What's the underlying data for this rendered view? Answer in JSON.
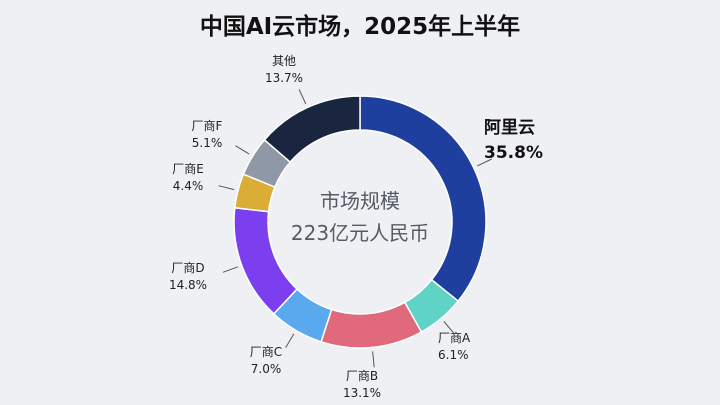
{
  "chart_data": {
    "type": "pie",
    "title": "中国AI云市场，2025年上半年",
    "center_lines": [
      "市场规模",
      "223亿元人民币"
    ],
    "slices": [
      {
        "name": "阿里云",
        "pct_label": "35.8%",
        "value": 35.8,
        "color": "#1f3f9e"
      },
      {
        "name": "厂商A",
        "pct_label": "6.1%",
        "value": 6.1,
        "color": "#5ed3c6"
      },
      {
        "name": "厂商B",
        "pct_label": "13.1%",
        "value": 13.1,
        "color": "#e0697c"
      },
      {
        "name": "厂商C",
        "pct_label": "7.0%",
        "value": 7.0,
        "color": "#5aa9ee"
      },
      {
        "name": "厂商D",
        "pct_label": "14.8%",
        "value": 14.8,
        "color": "#7b3ff0"
      },
      {
        "name": "厂商E",
        "pct_label": "4.4%",
        "value": 4.4,
        "color": "#d9ad36"
      },
      {
        "name": "厂商F",
        "pct_label": "5.1%",
        "value": 5.1,
        "color": "#8e98a6"
      },
      {
        "name": "其他",
        "pct_label": "13.7%",
        "value": 13.7,
        "color": "#1a2540"
      }
    ],
    "legend": "none"
  }
}
